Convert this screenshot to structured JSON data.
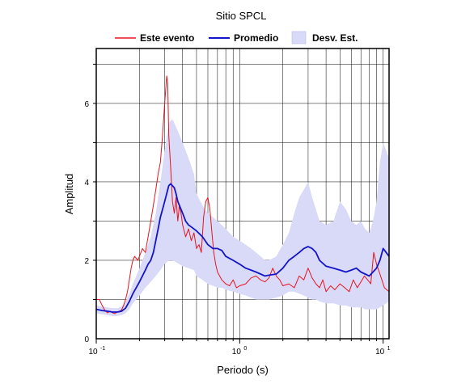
{
  "chart_data": {
    "type": "line",
    "title": "Sitio SPCL",
    "xlabel": "Periodo (s)",
    "ylabel": "Amplitud",
    "xscale": "log",
    "xlim": [
      0.1,
      11.0
    ],
    "ylim": [
      0,
      7.4
    ],
    "grid": true,
    "legend_position": "top",
    "x_tick_labels": [
      {
        "base": "10",
        "exp": "-1",
        "value": 0.1
      },
      {
        "base": "10",
        "exp": "0",
        "value": 1
      },
      {
        "base": "10",
        "exp": "1",
        "value": 10
      }
    ],
    "y_ticks": [
      0,
      2,
      4,
      6
    ],
    "legend": {
      "event_label": "Este evento",
      "mean_label": "Promedio",
      "std_label": "Desv. Est."
    },
    "colors": {
      "event": "#e8141e",
      "mean": "#1414c8",
      "std_fill": "#d8daf8"
    },
    "series": [
      {
        "name": "Este evento",
        "x": [
          0.1,
          0.105,
          0.11,
          0.115,
          0.12,
          0.125,
          0.13,
          0.135,
          0.14,
          0.145,
          0.15,
          0.155,
          0.16,
          0.165,
          0.17,
          0.175,
          0.18,
          0.185,
          0.19,
          0.195,
          0.2,
          0.21,
          0.22,
          0.23,
          0.24,
          0.25,
          0.26,
          0.27,
          0.28,
          0.29,
          0.3,
          0.31,
          0.315,
          0.32,
          0.33,
          0.34,
          0.35,
          0.36,
          0.37,
          0.38,
          0.39,
          0.4,
          0.42,
          0.44,
          0.46,
          0.48,
          0.5,
          0.52,
          0.54,
          0.56,
          0.58,
          0.6,
          0.62,
          0.64,
          0.66,
          0.68,
          0.7,
          0.75,
          0.8,
          0.85,
          0.9,
          0.95,
          1.0,
          1.1,
          1.2,
          1.3,
          1.4,
          1.5,
          1.6,
          1.7,
          1.8,
          1.9,
          2.0,
          2.2,
          2.4,
          2.6,
          2.8,
          3.0,
          3.2,
          3.4,
          3.6,
          3.8,
          4.0,
          4.3,
          4.6,
          5.0,
          5.4,
          5.8,
          6.2,
          6.6,
          7.0,
          7.4,
          7.8,
          8.2,
          8.6,
          9.0,
          9.4,
          9.8,
          10.2,
          10.6,
          11.0
        ],
        "values": [
          1.0,
          1.0,
          0.85,
          0.72,
          0.66,
          0.7,
          0.66,
          0.64,
          0.68,
          0.7,
          0.73,
          0.85,
          1.0,
          1.2,
          1.5,
          1.8,
          2.0,
          2.1,
          2.05,
          2.0,
          2.1,
          2.3,
          2.2,
          2.6,
          3.0,
          3.4,
          3.8,
          4.2,
          4.5,
          5.2,
          6.0,
          6.7,
          6.5,
          5.2,
          4.4,
          3.5,
          3.2,
          3.6,
          3.0,
          3.4,
          3.2,
          2.9,
          2.6,
          2.8,
          2.5,
          2.7,
          2.3,
          2.4,
          2.2,
          3.1,
          3.5,
          3.6,
          3.3,
          2.7,
          2.2,
          1.9,
          1.7,
          1.5,
          1.4,
          1.35,
          1.5,
          1.3,
          1.35,
          1.4,
          1.55,
          1.6,
          1.5,
          1.45,
          1.55,
          1.8,
          1.6,
          1.5,
          1.35,
          1.4,
          1.3,
          1.6,
          1.5,
          1.8,
          1.55,
          1.4,
          1.3,
          1.5,
          1.2,
          1.35,
          1.25,
          1.4,
          1.3,
          1.2,
          1.5,
          1.3,
          1.45,
          1.6,
          1.5,
          1.4,
          2.2,
          1.9,
          1.7,
          1.5,
          1.3,
          1.25,
          1.2
        ]
      },
      {
        "name": "Promedio",
        "x": [
          0.1,
          0.11,
          0.12,
          0.13,
          0.14,
          0.15,
          0.16,
          0.17,
          0.18,
          0.19,
          0.2,
          0.21,
          0.22,
          0.23,
          0.24,
          0.25,
          0.26,
          0.27,
          0.28,
          0.29,
          0.3,
          0.31,
          0.32,
          0.33,
          0.34,
          0.35,
          0.36,
          0.37,
          0.38,
          0.4,
          0.42,
          0.44,
          0.46,
          0.48,
          0.5,
          0.55,
          0.6,
          0.65,
          0.7,
          0.75,
          0.8,
          0.9,
          1.0,
          1.1,
          1.2,
          1.3,
          1.4,
          1.5,
          1.6,
          1.8,
          2.0,
          2.2,
          2.4,
          2.6,
          2.8,
          3.0,
          3.2,
          3.4,
          3.6,
          4.0,
          4.5,
          5.0,
          5.5,
          6.0,
          6.5,
          7.0,
          7.5,
          8.0,
          8.5,
          9.0,
          9.5,
          10.0,
          10.5,
          11.0
        ],
        "values": [
          0.75,
          0.72,
          0.7,
          0.68,
          0.68,
          0.7,
          0.78,
          0.95,
          1.15,
          1.3,
          1.45,
          1.6,
          1.75,
          1.9,
          2.0,
          2.2,
          2.5,
          2.8,
          3.1,
          3.3,
          3.5,
          3.7,
          3.9,
          3.95,
          3.9,
          3.85,
          3.7,
          3.5,
          3.4,
          3.2,
          3.0,
          2.9,
          2.85,
          2.8,
          2.75,
          2.6,
          2.4,
          2.3,
          2.3,
          2.25,
          2.1,
          2.0,
          1.9,
          1.8,
          1.75,
          1.7,
          1.65,
          1.6,
          1.62,
          1.65,
          1.8,
          2.0,
          2.1,
          2.2,
          2.3,
          2.35,
          2.3,
          2.2,
          2.0,
          1.85,
          1.8,
          1.75,
          1.7,
          1.75,
          1.8,
          1.7,
          1.65,
          1.6,
          1.7,
          1.8,
          2.0,
          2.3,
          2.2,
          2.1
        ]
      }
    ],
    "band": {
      "name": "Desv. Est.",
      "x": [
        0.1,
        0.11,
        0.12,
        0.13,
        0.14,
        0.15,
        0.16,
        0.17,
        0.18,
        0.19,
        0.2,
        0.22,
        0.24,
        0.26,
        0.28,
        0.3,
        0.32,
        0.34,
        0.36,
        0.38,
        0.4,
        0.44,
        0.48,
        0.5,
        0.55,
        0.6,
        0.65,
        0.7,
        0.75,
        0.8,
        0.9,
        1.0,
        1.1,
        1.2,
        1.3,
        1.4,
        1.5,
        1.6,
        1.8,
        2.0,
        2.2,
        2.4,
        2.6,
        2.8,
        3.0,
        3.2,
        3.4,
        3.6,
        4.0,
        4.5,
        5.0,
        5.5,
        6.0,
        6.5,
        7.0,
        7.5,
        8.0,
        8.5,
        9.0,
        9.5,
        10.0,
        10.5,
        11.0
      ],
      "upper": [
        0.85,
        0.82,
        0.8,
        0.78,
        0.78,
        0.82,
        0.95,
        1.15,
        1.4,
        1.6,
        1.8,
        2.2,
        2.6,
        3.2,
        4.0,
        4.8,
        5.5,
        5.6,
        5.4,
        5.2,
        5.0,
        4.6,
        4.2,
        3.7,
        3.4,
        3.2,
        3.1,
        3.0,
        2.9,
        2.8,
        2.6,
        2.5,
        2.4,
        2.3,
        2.2,
        2.1,
        2.0,
        2.0,
        2.1,
        2.4,
        2.7,
        3.2,
        3.6,
        3.8,
        4.0,
        3.6,
        3.3,
        3.0,
        2.9,
        3.0,
        3.5,
        3.3,
        3.0,
        2.9,
        3.0,
        2.8,
        2.7,
        3.0,
        3.5,
        4.5,
        5.0,
        4.8,
        4.6
      ],
      "lower": [
        0.65,
        0.62,
        0.6,
        0.58,
        0.58,
        0.6,
        0.65,
        0.75,
        0.9,
        1.0,
        1.1,
        1.3,
        1.45,
        1.6,
        1.75,
        1.9,
        2.0,
        2.0,
        1.95,
        1.9,
        1.85,
        1.8,
        1.75,
        1.6,
        1.5,
        1.4,
        1.35,
        1.3,
        1.3,
        1.25,
        1.2,
        1.15,
        1.1,
        1.05,
        1.0,
        1.0,
        1.0,
        1.0,
        1.05,
        1.1,
        1.2,
        1.2,
        1.15,
        1.1,
        1.05,
        1.0,
        1.0,
        0.95,
        0.9,
        0.9,
        0.85,
        0.85,
        0.8,
        0.8,
        0.8,
        0.75,
        0.75,
        0.75,
        0.75,
        0.8,
        0.85,
        0.9,
        0.95
      ]
    }
  }
}
